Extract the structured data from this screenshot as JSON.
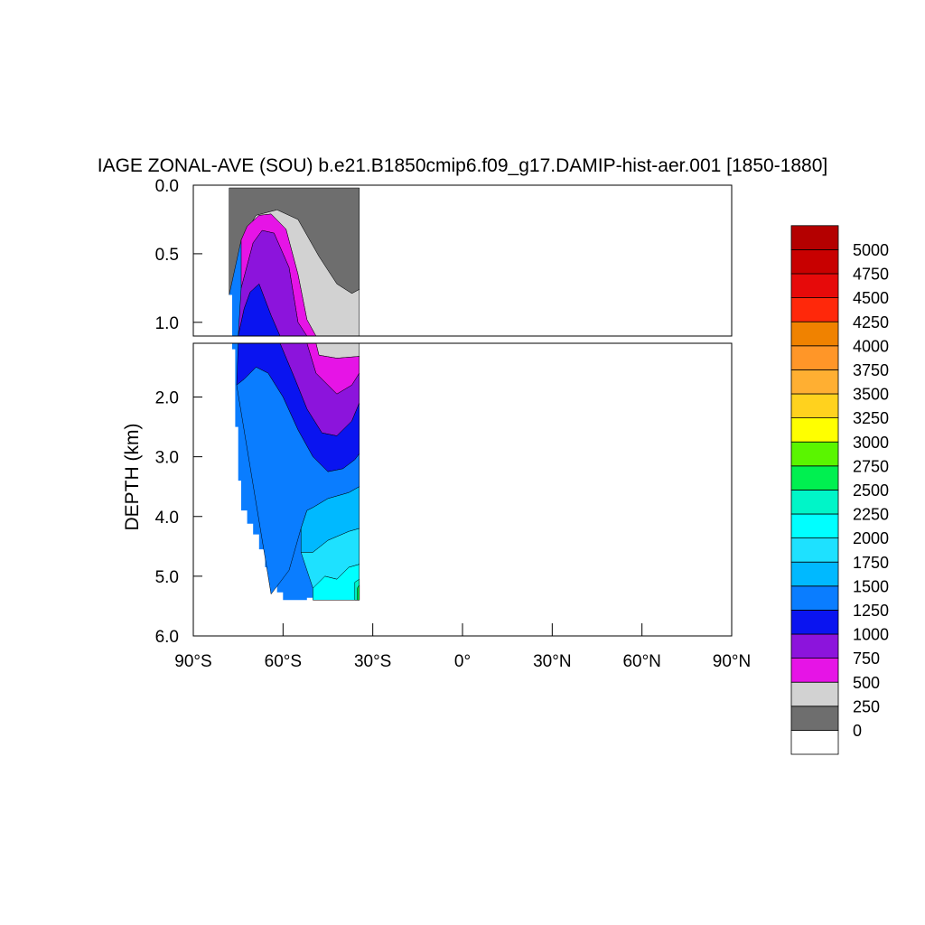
{
  "chart_data": {
    "type": "heatmap",
    "title": "IAGE ZONAL-AVE (SOU) b.e21.B1850cmip6.f09_g17.DAMIP-hist-aer.001 [1850-1880]",
    "ylabel": "DEPTH (km)",
    "xlabel": "",
    "xlim": [
      -90,
      90
    ],
    "y_upper_range": [
      0.0,
      1.1
    ],
    "y_lower_range": [
      1.1,
      6.0
    ],
    "upper_ticks": [
      "0.0",
      "0.5",
      "1.0"
    ],
    "lower_ticks": [
      "2.0",
      "3.0",
      "4.0",
      "5.0",
      "6.0"
    ],
    "x_ticks": [
      {
        "value": -90,
        "label": "90°S"
      },
      {
        "value": -60,
        "label": "60°S"
      },
      {
        "value": -30,
        "label": "30°S"
      },
      {
        "value": 0,
        "label": "0°"
      },
      {
        "value": 30,
        "label": "30°N"
      },
      {
        "value": 60,
        "label": "60°N"
      },
      {
        "value": 90,
        "label": "90°N"
      }
    ],
    "levels": [
      {
        "label": "0",
        "color": "#ffffff"
      },
      {
        "label": "250",
        "color": "#6e6e6e"
      },
      {
        "label": "500",
        "color": "#d2d2d2"
      },
      {
        "label": "750",
        "color": "#e614e6"
      },
      {
        "label": "1000",
        "color": "#8c14dc"
      },
      {
        "label": "1250",
        "color": "#0a14f0"
      },
      {
        "label": "1500",
        "color": "#0a7dff"
      },
      {
        "label": "1750",
        "color": "#00b9ff"
      },
      {
        "label": "2000",
        "color": "#1ee1ff"
      },
      {
        "label": "2250",
        "color": "#00ffff"
      },
      {
        "label": "2500",
        "color": "#00f5c8"
      },
      {
        "label": "2750",
        "color": "#00f050"
      },
      {
        "label": "3000",
        "color": "#5af500"
      },
      {
        "label": "3250",
        "color": "#ffff00"
      },
      {
        "label": "3500",
        "color": "#ffd21e"
      },
      {
        "label": "3750",
        "color": "#ffaf32"
      },
      {
        "label": "4000",
        "color": "#ff9628"
      },
      {
        "label": "4250",
        "color": "#f08200"
      },
      {
        "label": "4500",
        "color": "#ff280a"
      },
      {
        "label": "4750",
        "color": "#e60a0a"
      },
      {
        "label": "5000",
        "color": "#c80000"
      },
      {
        "label": "",
        "color": "#b40000"
      }
    ],
    "bands": [
      {
        "name": "250-500",
        "color": "#6e6e6e",
        "top": [
          [
            -78,
            0.02
          ],
          [
            -34.5,
            0.02
          ]
        ],
        "bottom": [
          [
            -78,
            0.8
          ],
          [
            -74,
            0.4
          ],
          [
            -69,
            0.22
          ],
          [
            -62,
            0.18
          ],
          [
            -55,
            0.25
          ],
          [
            -48,
            0.52
          ],
          [
            -42,
            0.72
          ],
          [
            -37,
            0.79
          ],
          [
            -34.5,
            0.76
          ]
        ]
      },
      {
        "name": "500-750",
        "color": "#d2d2d2",
        "top": [
          [
            -74,
            0.4
          ],
          [
            -69,
            0.22
          ],
          [
            -62,
            0.18
          ],
          [
            -55,
            0.25
          ],
          [
            -48,
            0.52
          ],
          [
            -42,
            0.72
          ],
          [
            -37,
            0.79
          ],
          [
            -34.5,
            0.76
          ]
        ],
        "bottom": [
          [
            -74,
            0.4
          ],
          [
            -72,
            0.3
          ],
          [
            -68,
            0.22
          ],
          [
            -64,
            0.21
          ],
          [
            -59,
            0.32
          ],
          [
            -55,
            0.65
          ],
          [
            -52,
            0.98
          ],
          [
            -49,
            1.1
          ],
          [
            -48,
            1.3
          ],
          [
            -42,
            1.35
          ],
          [
            -34.5,
            1.32
          ]
        ]
      },
      {
        "name": "750-1000",
        "color": "#e614e6",
        "top": [
          [
            -74,
            0.4
          ],
          [
            -72,
            0.3
          ],
          [
            -68,
            0.22
          ],
          [
            -64,
            0.21
          ],
          [
            -59,
            0.32
          ],
          [
            -55,
            0.65
          ],
          [
            -52,
            0.98
          ],
          [
            -49,
            1.1
          ],
          [
            -48,
            1.3
          ],
          [
            -42,
            1.35
          ],
          [
            -34.5,
            1.32
          ]
        ],
        "bottom": [
          [
            -74,
            0.75
          ],
          [
            -70,
            0.42
          ],
          [
            -67,
            0.33
          ],
          [
            -63,
            0.35
          ],
          [
            -58,
            0.6
          ],
          [
            -55,
            1.0
          ],
          [
            -52,
            1.1
          ],
          [
            -49,
            1.6
          ],
          [
            -42,
            1.95
          ],
          [
            -37,
            1.8
          ],
          [
            -34.5,
            1.6
          ]
        ]
      },
      {
        "name": "1000-1250",
        "color": "#8c14dc",
        "top": [
          [
            -74,
            0.75
          ],
          [
            -70,
            0.42
          ],
          [
            -67,
            0.33
          ],
          [
            -63,
            0.35
          ],
          [
            -58,
            0.6
          ],
          [
            -55,
            1.0
          ],
          [
            -52,
            1.1
          ],
          [
            -49,
            1.6
          ],
          [
            -42,
            1.95
          ],
          [
            -37,
            1.8
          ],
          [
            -34.5,
            1.6
          ]
        ],
        "bottom": [
          [
            -75,
            1.1
          ],
          [
            -73,
            0.9
          ],
          [
            -71,
            0.78
          ],
          [
            -68,
            0.72
          ],
          [
            -64,
            0.95
          ],
          [
            -61,
            1.1
          ],
          [
            -56,
            1.7
          ],
          [
            -52,
            2.2
          ],
          [
            -47,
            2.6
          ],
          [
            -42,
            2.65
          ],
          [
            -37,
            2.4
          ],
          [
            -34.5,
            2.1
          ]
        ]
      },
      {
        "name": "1250-1500",
        "color": "#0a14f0",
        "top": [
          [
            -75,
            1.1
          ],
          [
            -73,
            0.9
          ],
          [
            -71,
            0.78
          ],
          [
            -68,
            0.72
          ],
          [
            -64,
            0.95
          ],
          [
            -61,
            1.1
          ],
          [
            -56,
            1.7
          ],
          [
            -52,
            2.2
          ],
          [
            -47,
            2.6
          ],
          [
            -42,
            2.65
          ],
          [
            -37,
            2.4
          ],
          [
            -34.5,
            2.1
          ]
        ],
        "bottom": [
          [
            -75.5,
            1.8
          ],
          [
            -73,
            1.7
          ],
          [
            -69,
            1.5
          ],
          [
            -65,
            1.6
          ],
          [
            -60,
            2.0
          ],
          [
            -55,
            2.55
          ],
          [
            -50,
            3.0
          ],
          [
            -45,
            3.25
          ],
          [
            -40,
            3.2
          ],
          [
            -36,
            3.05
          ],
          [
            -34.5,
            2.95
          ]
        ]
      },
      {
        "name": "1500-1750",
        "color": "#0a7dff",
        "top": [
          [
            -75.5,
            1.8
          ],
          [
            -73,
            1.7
          ],
          [
            -69,
            1.5
          ],
          [
            -65,
            1.6
          ],
          [
            -60,
            2.0
          ],
          [
            -55,
            2.55
          ],
          [
            -50,
            3.0
          ],
          [
            -45,
            3.25
          ],
          [
            -40,
            3.2
          ],
          [
            -36,
            3.05
          ],
          [
            -34.5,
            2.95
          ]
        ],
        "bottom": [
          [
            -64,
            5.3
          ],
          [
            -58,
            4.9
          ],
          [
            -54,
            4.2
          ],
          [
            -52,
            3.9
          ],
          [
            -50,
            3.85
          ],
          [
            -45,
            3.7
          ],
          [
            -38,
            3.6
          ],
          [
            -34.5,
            3.5
          ]
        ]
      },
      {
        "name": "1750-2000",
        "color": "#00b9ff",
        "top": [
          [
            -54,
            4.2
          ],
          [
            -52,
            3.9
          ],
          [
            -50,
            3.85
          ],
          [
            -45,
            3.7
          ],
          [
            -38,
            3.6
          ],
          [
            -34.5,
            3.5
          ]
        ],
        "bottom": [
          [
            -54,
            4.6
          ],
          [
            -50,
            4.6
          ],
          [
            -45,
            4.4
          ],
          [
            -38,
            4.25
          ],
          [
            -34.5,
            4.2
          ]
        ]
      },
      {
        "name": "2000-2250",
        "color": "#1ee1ff",
        "top": [
          [
            -54,
            4.6
          ],
          [
            -50,
            4.6
          ],
          [
            -45,
            4.4
          ],
          [
            -38,
            4.25
          ],
          [
            -34.5,
            4.2
          ]
        ],
        "bottom": [
          [
            -50,
            5.2
          ],
          [
            -46,
            5.0
          ],
          [
            -42,
            5.05
          ],
          [
            -38,
            4.85
          ],
          [
            -34.5,
            4.8
          ]
        ]
      },
      {
        "name": "2250-2500",
        "color": "#00ffff",
        "top": [
          [
            -50,
            5.2
          ],
          [
            -46,
            5.0
          ],
          [
            -42,
            5.05
          ],
          [
            -38,
            4.85
          ],
          [
            -34.5,
            4.8
          ]
        ],
        "bottom": [
          [
            -50,
            5.4
          ],
          [
            -34.5,
            5.4
          ]
        ]
      },
      {
        "name": "2500-2750",
        "color": "#00f5c8",
        "top": [
          [
            -36,
            5.1
          ],
          [
            -34.5,
            5.05
          ]
        ],
        "bottom": [
          [
            -36,
            5.4
          ],
          [
            -34.5,
            5.4
          ]
        ]
      },
      {
        "name": "2750-3000",
        "color": "#00f050",
        "top": [
          [
            -35.2,
            5.2
          ],
          [
            -34.5,
            5.15
          ]
        ],
        "bottom": [
          [
            -35.2,
            5.4
          ],
          [
            -34.5,
            5.4
          ]
        ]
      }
    ],
    "domain_boundary": [
      [
        -78,
        0.02
      ],
      [
        -34.5,
        0.02
      ],
      [
        -34.5,
        5.4
      ],
      [
        -37,
        5.4
      ],
      [
        -37,
        5.36
      ],
      [
        -52,
        5.36
      ],
      [
        -52,
        5.4
      ],
      [
        -60,
        5.4
      ],
      [
        -60,
        5.27
      ],
      [
        -62,
        5.27
      ],
      [
        -62,
        5.05
      ],
      [
        -64,
        5.05
      ],
      [
        -64,
        4.85
      ],
      [
        -66,
        4.85
      ],
      [
        -66,
        4.55
      ],
      [
        -68,
        4.55
      ],
      [
        -68,
        4.3
      ],
      [
        -70,
        4.3
      ],
      [
        -70,
        4.12
      ],
      [
        -72,
        4.12
      ],
      [
        -72,
        3.9
      ],
      [
        -74,
        3.9
      ],
      [
        -74,
        3.4
      ],
      [
        -75,
        3.4
      ],
      [
        -75,
        2.5
      ],
      [
        -76,
        2.5
      ],
      [
        -76,
        1.2
      ],
      [
        -77,
        1.2
      ],
      [
        -77,
        0.8
      ],
      [
        -78,
        0.8
      ]
    ]
  }
}
